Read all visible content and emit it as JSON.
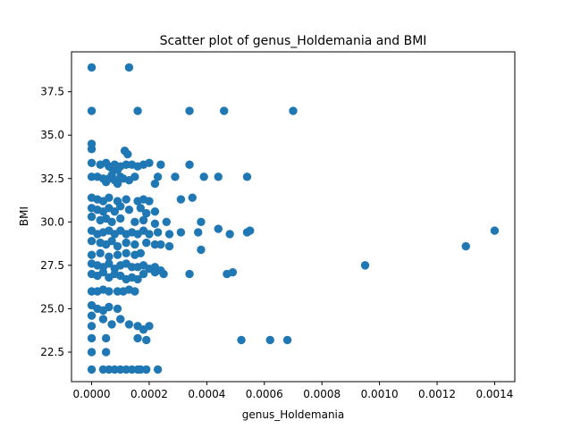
{
  "chart_data": {
    "type": "scatter",
    "title": "Scatter plot of genus_Holdemania and BMI",
    "xlabel": "genus_Holdemania",
    "ylabel": "BMI",
    "xlim": [
      -7e-05,
      0.00147
    ],
    "ylim": [
      20.8,
      39.8
    ],
    "x_ticks": [
      "0.0000",
      "0.0002",
      "0.0004",
      "0.0006",
      "0.0008",
      "0.0010",
      "0.0012",
      "0.0014"
    ],
    "x_tick_values": [
      0,
      0.0002,
      0.0004,
      0.0006,
      0.0008,
      0.001,
      0.0012,
      0.0014
    ],
    "y_ticks": [
      "22.5",
      "25.0",
      "27.5",
      "30.0",
      "32.5",
      "35.0",
      "37.5"
    ],
    "y_tick_values": [
      22.5,
      25.0,
      27.5,
      30.0,
      32.5,
      35.0,
      37.5
    ],
    "grid": false,
    "marker_color": "#1f77b4",
    "points": [
      [
        0,
        38.9
      ],
      [
        0.00013,
        38.9
      ],
      [
        0,
        36.4
      ],
      [
        0.00016,
        36.4
      ],
      [
        0.00034,
        36.4
      ],
      [
        0.00046,
        36.4
      ],
      [
        0.0007,
        36.4
      ],
      [
        0,
        34.5
      ],
      [
        0,
        34.2
      ],
      [
        0.000115,
        34.1
      ],
      [
        0.000125,
        33.9
      ],
      [
        0,
        33.4
      ],
      [
        3e-05,
        33.3
      ],
      [
        5e-05,
        33.4
      ],
      [
        6e-05,
        33.2
      ],
      [
        7e-05,
        33.1
      ],
      [
        8e-05,
        33.3
      ],
      [
        9e-05,
        33.0
      ],
      [
        0.0001,
        33.2
      ],
      [
        0.00012,
        33.3
      ],
      [
        0.00014,
        33.3
      ],
      [
        0.00016,
        33.2
      ],
      [
        0.00018,
        33.3
      ],
      [
        0.0002,
        33.4
      ],
      [
        0.00024,
        33.3
      ],
      [
        0.00034,
        33.3
      ],
      [
        0,
        32.6
      ],
      [
        2e-05,
        32.6
      ],
      [
        4e-05,
        32.5
      ],
      [
        5e-05,
        32.3
      ],
      [
        6e-05,
        32.5
      ],
      [
        7e-05,
        32.7
      ],
      [
        8e-05,
        32.4
      ],
      [
        9e-05,
        32.2
      ],
      [
        0.0001,
        32.6
      ],
      [
        0.00011,
        32.5
      ],
      [
        0.00013,
        32.4
      ],
      [
        0.00015,
        32.6
      ],
      [
        0.00023,
        32.6
      ],
      [
        0.00029,
        32.6
      ],
      [
        0.00039,
        32.6
      ],
      [
        0.00044,
        32.6
      ],
      [
        0.00054,
        32.6
      ],
      [
        0.00022,
        32.2
      ],
      [
        0,
        31.4
      ],
      [
        2e-05,
        31.3
      ],
      [
        4e-05,
        31.2
      ],
      [
        6e-05,
        31.4
      ],
      [
        9e-05,
        31.2
      ],
      [
        0.00012,
        31.3
      ],
      [
        0.00016,
        31.2
      ],
      [
        0.00018,
        31.3
      ],
      [
        0.0002,
        31.2
      ],
      [
        0.00031,
        31.3
      ],
      [
        0.00035,
        31.4
      ],
      [
        0.00017,
        30.8
      ],
      [
        0,
        30.8
      ],
      [
        2e-05,
        30.7
      ],
      [
        4e-05,
        30.6
      ],
      [
        6e-05,
        30.8
      ],
      [
        8e-05,
        30.6
      ],
      [
        0.0001,
        30.9
      ],
      [
        0.00013,
        30.7
      ],
      [
        0.00019,
        30.5
      ],
      [
        0.00022,
        30.6
      ],
      [
        0,
        30.3
      ],
      [
        3e-05,
        30.1
      ],
      [
        5e-05,
        30.2
      ],
      [
        7e-05,
        30.0
      ],
      [
        0.0001,
        30.2
      ],
      [
        0.00015,
        30.0
      ],
      [
        0.00018,
        30.1
      ],
      [
        0.00026,
        30.0
      ],
      [
        0.00038,
        30.0
      ],
      [
        0.00022,
        29.9
      ],
      [
        0,
        29.5
      ],
      [
        2e-05,
        29.3
      ],
      [
        4e-05,
        29.4
      ],
      [
        6e-05,
        29.5
      ],
      [
        8e-05,
        29.3
      ],
      [
        0.0001,
        29.5
      ],
      [
        0.00012,
        29.3
      ],
      [
        0.00014,
        29.4
      ],
      [
        0.00016,
        29.3
      ],
      [
        0.00018,
        29.5
      ],
      [
        0.0002,
        29.3
      ],
      [
        0.00023,
        29.4
      ],
      [
        0.00027,
        29.3
      ],
      [
        0.00031,
        29.4
      ],
      [
        0.00037,
        29.4
      ],
      [
        0.00044,
        29.6
      ],
      [
        0.00048,
        29.3
      ],
      [
        0.00054,
        29.4
      ],
      [
        0.00055,
        29.5
      ],
      [
        0.0014,
        29.5
      ],
      [
        0,
        28.9
      ],
      [
        3e-05,
        28.8
      ],
      [
        5e-05,
        28.7
      ],
      [
        7e-05,
        28.9
      ],
      [
        9e-05,
        28.6
      ],
      [
        0.00012,
        28.8
      ],
      [
        0.00015,
        28.7
      ],
      [
        0.00019,
        28.8
      ],
      [
        0.00022,
        28.7
      ],
      [
        0.00024,
        28.7
      ],
      [
        0.00027,
        28.6
      ],
      [
        0.0013,
        28.6
      ],
      [
        0,
        28.1
      ],
      [
        3e-05,
        28.2
      ],
      [
        6e-05,
        28.0
      ],
      [
        9e-05,
        28.1
      ],
      [
        0.00012,
        28.2
      ],
      [
        0.00015,
        28.1
      ],
      [
        0.00017,
        28.2
      ],
      [
        0.00038,
        28.4
      ],
      [
        0,
        27.6
      ],
      [
        2e-05,
        27.5
      ],
      [
        4e-05,
        27.4
      ],
      [
        6e-05,
        27.6
      ],
      [
        8e-05,
        27.3
      ],
      [
        0.0001,
        27.5
      ],
      [
        0.00012,
        27.6
      ],
      [
        0.00014,
        27.4
      ],
      [
        0.00016,
        27.4
      ],
      [
        0.00018,
        27.5
      ],
      [
        0.0002,
        27.3
      ],
      [
        0.00022,
        27.4
      ],
      [
        0.00024,
        27.2
      ],
      [
        0.00095,
        27.5
      ],
      [
        0,
        27.0
      ],
      [
        2e-05,
        26.9
      ],
      [
        4e-05,
        27.1
      ],
      [
        6e-05,
        26.8
      ],
      [
        8e-05,
        27.0
      ],
      [
        0.0001,
        26.9
      ],
      [
        0.00012,
        26.7
      ],
      [
        0.00014,
        26.8
      ],
      [
        0.00016,
        26.7
      ],
      [
        0.00018,
        27.0
      ],
      [
        0.00022,
        27.1
      ],
      [
        0.00025,
        27.0
      ],
      [
        0.00034,
        27.0
      ],
      [
        0.00047,
        27.0
      ],
      [
        0.00049,
        27.1
      ],
      [
        0,
        26.0
      ],
      [
        2e-05,
        26.0
      ],
      [
        4e-05,
        26.1
      ],
      [
        6e-05,
        26.0
      ],
      [
        9e-05,
        26.0
      ],
      [
        0.00011,
        26.0
      ],
      [
        0.00013,
        26.1
      ],
      [
        0.00015,
        26.0
      ],
      [
        0,
        25.2
      ],
      [
        2e-05,
        25.0
      ],
      [
        4e-05,
        24.9
      ],
      [
        6e-05,
        25.1
      ],
      [
        9e-05,
        25.0
      ],
      [
        0,
        24.6
      ],
      [
        4e-05,
        24.4
      ],
      [
        7e-05,
        24.1
      ],
      [
        0.0001,
        24.4
      ],
      [
        0.00013,
        24.1
      ],
      [
        0.00016,
        24.0
      ],
      [
        0.00018,
        23.8
      ],
      [
        0.0002,
        24.0
      ],
      [
        0,
        24.0
      ],
      [
        0,
        23.3
      ],
      [
        5e-05,
        23.3
      ],
      [
        0.00016,
        23.3
      ],
      [
        0.00019,
        23.2
      ],
      [
        0.00052,
        23.2
      ],
      [
        0.00062,
        23.2
      ],
      [
        0.00068,
        23.2
      ],
      [
        0,
        22.5
      ],
      [
        5e-05,
        22.5
      ],
      [
        0,
        21.5
      ],
      [
        4e-05,
        21.5
      ],
      [
        6e-05,
        21.5
      ],
      [
        8e-05,
        21.5
      ],
      [
        0.0001,
        21.5
      ],
      [
        0.00012,
        21.5
      ],
      [
        0.00014,
        21.5
      ],
      [
        0.00016,
        21.5
      ],
      [
        0.00017,
        21.5
      ],
      [
        0.00019,
        21.5
      ],
      [
        0.00023,
        21.5
      ]
    ]
  }
}
